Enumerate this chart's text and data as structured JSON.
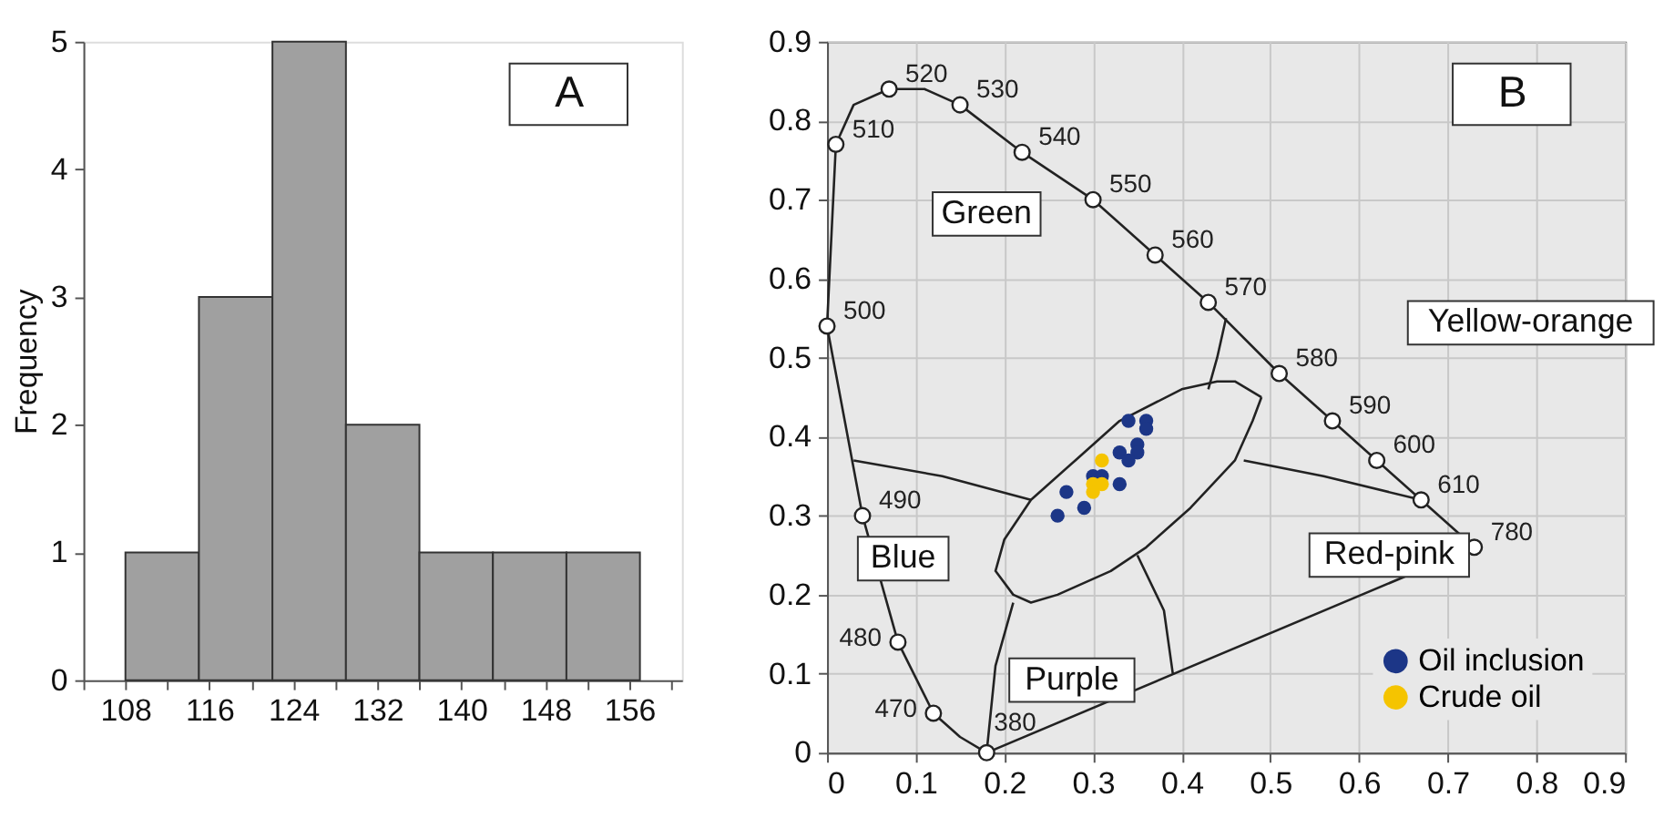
{
  "chart_data": [
    {
      "type": "histogram",
      "ylabel": "Frequency",
      "bins": [
        108,
        115,
        122,
        129,
        136,
        143,
        150,
        157
      ],
      "values": [
        1,
        3,
        5,
        2,
        1,
        1,
        1
      ],
      "color": "#a0a0a0",
      "xlim": [
        104,
        161
      ],
      "xticks": [
        {
          "value": 104,
          "label": null
        },
        108,
        {
          "value": 112,
          "label": null
        },
        116,
        {
          "value": 120,
          "label": null
        },
        124,
        {
          "value": 128,
          "label": null
        },
        132,
        {
          "value": 136,
          "label": null
        },
        140,
        {
          "value": 144,
          "label": null
        },
        148,
        {
          "value": 152,
          "label": null
        },
        156,
        {
          "value": 160,
          "label": null
        }
      ],
      "ylim": [
        0,
        5
      ],
      "yticks": [
        0,
        1,
        2,
        3,
        4,
        5
      ],
      "grid": false,
      "annotations": [
        "A"
      ]
    },
    {
      "type": "scatter",
      "xlim": [
        0,
        0.9
      ],
      "ylim": [
        0,
        0.9
      ],
      "xticks": [
        0,
        0.1,
        0.2,
        0.3,
        0.4,
        0.5,
        0.6,
        0.7,
        0.8,
        0.9
      ],
      "yticks": [
        0,
        0.1,
        0.2,
        0.3,
        0.4,
        0.5,
        0.6,
        0.7,
        0.8,
        0.9
      ],
      "grid": true,
      "legend": "bottom right",
      "series": [
        {
          "type": "line",
          "color": "#222222",
          "x": [
            0.0,
            0.02,
            0.04,
            0.08,
            0.12,
            0.15,
            0.18
          ],
          "values": [
            0.54,
            0.42,
            0.3,
            0.14,
            0.05,
            0.02,
            0.0
          ]
        },
        {
          "type": "line",
          "color": "#222222",
          "x": [
            0.0,
            0.01,
            0.03,
            0.07,
            0.11,
            0.15,
            0.22,
            0.3,
            0.37,
            0.43,
            0.51,
            0.57,
            0.62,
            0.67,
            0.73
          ],
          "values": [
            0.54,
            0.77,
            0.82,
            0.84,
            0.84,
            0.82,
            0.76,
            0.7,
            0.63,
            0.57,
            0.48,
            0.42,
            0.37,
            0.32,
            0.26
          ]
        },
        {
          "type": "line",
          "color": "#222222",
          "x": [
            0.18,
            0.73
          ],
          "values": [
            0.0,
            0.26
          ]
        },
        {
          "type": "line",
          "color": "#222222",
          "x": [
            0.03,
            0.13,
            0.23
          ],
          "values": [
            0.37,
            0.35,
            0.32
          ]
        },
        {
          "type": "line",
          "color": "#222222",
          "x": [
            0.45,
            0.44,
            0.43
          ],
          "values": [
            0.55,
            0.5,
            0.46
          ]
        },
        {
          "type": "line",
          "color": "#222222",
          "x": [
            0.47,
            0.56,
            0.67
          ],
          "values": [
            0.37,
            0.35,
            0.32
          ]
        },
        {
          "type": "line",
          "color": "#222222",
          "x": [
            0.35,
            0.38,
            0.39
          ],
          "values": [
            0.25,
            0.18,
            0.1
          ]
        },
        {
          "type": "line",
          "color": "#222222",
          "x": [
            0.21,
            0.19,
            0.18
          ],
          "values": [
            0.19,
            0.11,
            0.0
          ]
        },
        {
          "type": "scatter",
          "marker": "circle",
          "color": "#222222",
          "x": [
            0.18,
            0.12,
            0.08,
            0.04,
            0.0,
            0.01,
            0.07,
            0.15,
            0.22,
            0.3,
            0.37,
            0.43,
            0.51,
            0.57,
            0.62,
            0.67,
            0.73
          ],
          "values": [
            0.0,
            0.05,
            0.14,
            0.3,
            0.54,
            0.77,
            0.84,
            0.82,
            0.76,
            0.7,
            0.63,
            0.57,
            0.48,
            0.42,
            0.37,
            0.32,
            0.26
          ]
        },
        {
          "name": "Oil inclusion",
          "color": "#1c3687",
          "x": [
            0.34,
            0.36,
            0.36,
            0.35,
            0.35,
            0.33,
            0.34,
            0.3,
            0.31,
            0.33,
            0.27,
            0.29,
            0.26
          ],
          "values": [
            0.42,
            0.42,
            0.41,
            0.39,
            0.38,
            0.38,
            0.37,
            0.35,
            0.35,
            0.34,
            0.33,
            0.31,
            0.3
          ]
        },
        {
          "name": "Crude oil",
          "color": "#f5c400",
          "x": [
            0.31,
            0.3,
            0.31,
            0.3
          ],
          "values": [
            0.37,
            0.34,
            0.34,
            0.33
          ]
        }
      ],
      "annotations": [
        "B",
        {
          "text": "380",
          "x": 0.18,
          "y": 0.0
        },
        {
          "text": "470",
          "x": 0.12,
          "y": 0.05
        },
        {
          "text": "480",
          "x": 0.08,
          "y": 0.14
        },
        {
          "text": "490",
          "x": 0.04,
          "y": 0.3
        },
        {
          "text": "500",
          "x": 0.0,
          "y": 0.54
        },
        {
          "text": "510",
          "x": 0.01,
          "y": 0.77
        },
        {
          "text": "520",
          "x": 0.07,
          "y": 0.84
        },
        {
          "text": "530",
          "x": 0.15,
          "y": 0.82
        },
        {
          "text": "540",
          "x": 0.22,
          "y": 0.76
        },
        {
          "text": "550",
          "x": 0.3,
          "y": 0.7
        },
        {
          "text": "560",
          "x": 0.37,
          "y": 0.63
        },
        {
          "text": "570",
          "x": 0.43,
          "y": 0.57
        },
        {
          "text": "580",
          "x": 0.51,
          "y": 0.48
        },
        {
          "text": "590",
          "x": 0.57,
          "y": 0.42
        },
        {
          "text": "600",
          "x": 0.62,
          "y": 0.37
        },
        {
          "text": "610",
          "x": 0.67,
          "y": 0.32
        },
        {
          "text": "780",
          "x": 0.73,
          "y": 0.26
        },
        "Green",
        "Blue",
        "Purple",
        "Red-pink",
        "Yellow-orange"
      ]
    }
  ]
}
